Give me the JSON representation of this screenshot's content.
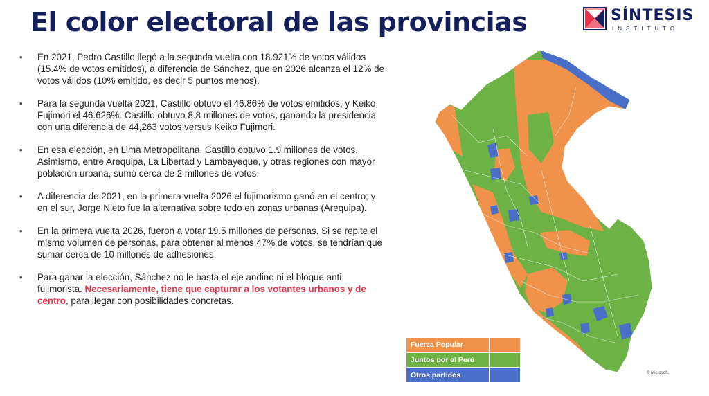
{
  "title": "El color electoral de las provincias",
  "logo": {
    "name": "SÍNTESIS",
    "subtitle": "INSTITUTO"
  },
  "bullets": [
    {
      "text": "En 2021, Pedro Castillo llegó a la segunda vuelta con 18.921% de votos válidos (15.4% de votos emitidos), a diferencia de Sánchez, que en 2026 alcanza el 12% de votos válidos (10% emitido, es decir 5 puntos menos)."
    },
    {
      "text": "Para la segunda  vuelta 2021, Castillo obtuvo el 46.86% de votos emitidos, y Keiko Fujimori el 46.626%. Castillo obtuvo 8.8 millones de votos, ganando la presidencia con una diferencia de 44,263 votos versus Keiko Fujimori."
    },
    {
      "text": "En esa elección, en Lima Metropolitana, Castillo obtuvo 1.9 millones de votos. Asimismo, entre Arequipa, La Libertad y Lambayeque, y otras regiones con mayor población urbana, sumó cerca de 2 millones de votos."
    },
    {
      "text": "A diferencia de 2021, en la primera vuelta 2026 el fujimorismo ganó en el centro; y en el sur, Jorge Nieto fue la alternativa sobre todo en zonas urbanas (Arequipa)."
    },
    {
      "text": "En la primera vuelta 2026, fueron a votar 19.5 millones de personas. Si se repite el mismo volumen de personas, para obtener al menos 47% de votos, se tendrían que sumar cerca de 10 millones de adhesiones."
    },
    {
      "text_before": "Para ganar la elección, Sánchez no le basta el eje andino ni el bloque anti fujimorista. ",
      "highlight": "Necesariamente, tiene que capturar a los votantes urbanos y de centro",
      "text_after": ", para llegar con posibilidades concretas."
    }
  ],
  "legend": [
    {
      "label": "Fuerza Popular",
      "color": "#f0924a"
    },
    {
      "label": "Juntos por el Perú",
      "color": "#6cb245"
    },
    {
      "label": "Otros partidos",
      "color": "#4a6fc9"
    }
  ],
  "map_colors": {
    "orange": "#f0924a",
    "green": "#6cb245",
    "blue": "#4a6fc9"
  },
  "credit": "© Microsoft,"
}
